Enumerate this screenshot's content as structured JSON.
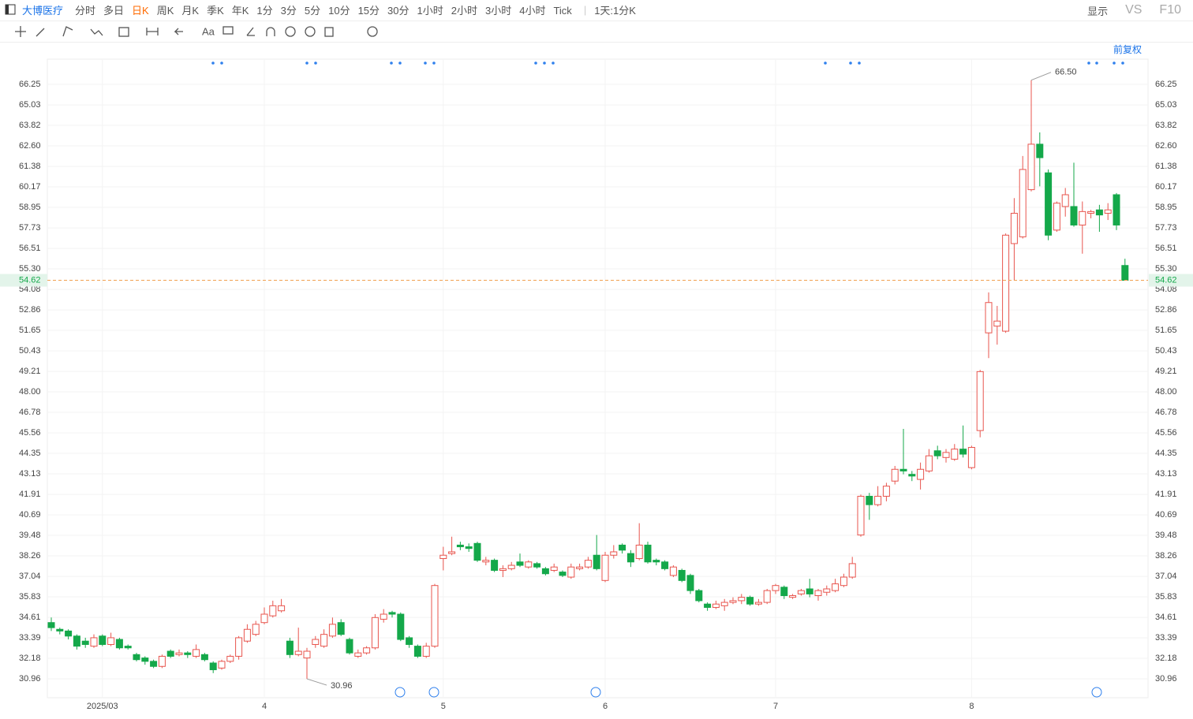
{
  "toolbar": {
    "stock": "大博医疗",
    "periods": [
      "分时",
      "多日",
      "日K",
      "周K",
      "月K",
      "季K",
      "年K",
      "1分",
      "3分",
      "5分",
      "10分",
      "15分",
      "30分",
      "1小时",
      "2小时",
      "3小时",
      "4小时",
      "Tick"
    ],
    "range": "1天:1分K",
    "display": "显示",
    "compare": "VS",
    "f10": "F10"
  },
  "adjust": "前复权",
  "chart_data": {
    "type": "candlestick",
    "categories": [
      null,
      null,
      null,
      null,
      null,
      null,
      "2025/03",
      null,
      null,
      null,
      null,
      null,
      null,
      null,
      null,
      null,
      null,
      null,
      null,
      null,
      null,
      null,
      null,
      null,
      null,
      "4",
      null,
      null,
      null,
      null,
      null,
      null,
      null,
      null,
      null,
      null,
      null,
      null,
      null,
      null,
      null,
      null,
      null,
      null,
      null,
      null,
      "5",
      null,
      null,
      null,
      null,
      null,
      null,
      null,
      null,
      null,
      null,
      null,
      null,
      null,
      null,
      null,
      null,
      null,
      null,
      "6",
      null,
      null,
      null,
      null,
      null,
      null,
      null,
      null,
      null,
      null,
      null,
      null,
      null,
      null,
      null,
      null,
      null,
      null,
      null,
      "7",
      null,
      null,
      null,
      null,
      null,
      null,
      null,
      null,
      null,
      null,
      null,
      null,
      null,
      null,
      null,
      null,
      null,
      null,
      null,
      null,
      null,
      null,
      "8",
      null,
      null,
      null,
      null,
      null,
      null,
      null,
      null,
      null,
      null,
      null,
      null,
      null,
      null,
      null,
      null,
      null,
      null
    ],
    "open": [
      34.3,
      33.9,
      33.8,
      33.5,
      33.2,
      32.9,
      33.5,
      33.0,
      33.3,
      32.9,
      32.4,
      32.2,
      32.0,
      31.7,
      32.6,
      32.4,
      32.5,
      32.3,
      32.4,
      31.9,
      31.6,
      32.0,
      32.3,
      33.2,
      33.6,
      34.3,
      34.7,
      35.0,
      33.2,
      32.4,
      32.2,
      33.0,
      32.9,
      33.5,
      34.3,
      33.3,
      32.3,
      32.5,
      32.8,
      34.5,
      34.9,
      34.8,
      33.4,
      32.9,
      32.3,
      32.9,
      38.1,
      38.4,
      38.9,
      38.8,
      39.0,
      37.9,
      38.0,
      37.4,
      37.5,
      37.9,
      37.6,
      37.8,
      37.5,
      37.4,
      37.3,
      37.0,
      37.5,
      37.6,
      38.3,
      36.8,
      38.3,
      38.9,
      38.4,
      38.1,
      38.9,
      38.0,
      37.9,
      37.1,
      37.4,
      37.1,
      36.2,
      35.4,
      35.2,
      35.3,
      35.5,
      35.6,
      35.8,
      35.4,
      35.5,
      36.2,
      36.4,
      35.8,
      36.0,
      36.3,
      35.9,
      36.1,
      36.2,
      36.5,
      37.0,
      39.5,
      41.8,
      41.3,
      41.8,
      42.7,
      43.4,
      43.1,
      42.8,
      43.3,
      44.5,
      44.1,
      44.0,
      44.6,
      43.5,
      45.7,
      51.5,
      51.9,
      51.6,
      56.8,
      57.2,
      60.0,
      62.7,
      61.0,
      57.6,
      59.0,
      59.0,
      57.9,
      58.6,
      58.8,
      58.6,
      59.7,
      55.5
    ],
    "high": [
      34.6,
      34.0,
      33.9,
      33.6,
      33.4,
      33.6,
      33.6,
      33.7,
      33.4,
      33.0,
      32.5,
      32.3,
      32.1,
      32.4,
      32.7,
      32.7,
      32.6,
      33.0,
      32.5,
      32.0,
      32.1,
      32.4,
      33.5,
      34.2,
      34.4,
      35.2,
      35.6,
      35.7,
      33.4,
      34.0,
      32.8,
      33.5,
      33.9,
      34.6,
      34.5,
      33.4,
      32.7,
      32.9,
      34.8,
      35.1,
      35.0,
      34.9,
      33.5,
      33.0,
      33.1,
      36.6,
      38.8,
      39.4,
      39.1,
      39.0,
      39.1,
      38.2,
      38.1,
      37.7,
      37.9,
      38.4,
      38.0,
      37.9,
      37.6,
      37.8,
      37.4,
      37.8,
      37.8,
      38.2,
      39.5,
      38.5,
      38.9,
      39.0,
      38.6,
      40.2,
      39.1,
      38.1,
      38.0,
      37.7,
      37.5,
      37.2,
      36.3,
      35.5,
      35.6,
      35.7,
      35.8,
      36.0,
      35.9,
      35.7,
      36.3,
      36.6,
      36.5,
      36.0,
      36.3,
      36.9,
      36.3,
      36.5,
      36.9,
      37.2,
      38.2,
      41.9,
      42.0,
      42.4,
      42.6,
      43.6,
      45.8,
      43.3,
      43.8,
      44.6,
      44.8,
      44.6,
      44.9,
      46.0,
      44.8,
      49.3,
      53.9,
      53.1,
      57.4,
      59.5,
      62.0,
      66.5,
      63.4,
      61.2,
      59.3,
      60.1,
      61.6,
      59.3,
      58.8,
      59.1,
      59.2,
      59.8,
      55.9
    ],
    "low": [
      33.8,
      33.6,
      33.3,
      32.7,
      32.8,
      32.8,
      32.9,
      32.9,
      32.7,
      32.7,
      32.0,
      31.8,
      31.6,
      31.6,
      32.2,
      32.3,
      32.2,
      32.2,
      32.0,
      31.3,
      31.5,
      31.9,
      32.1,
      33.1,
      33.5,
      34.2,
      34.6,
      34.9,
      32.2,
      32.3,
      30.96,
      32.8,
      32.8,
      33.4,
      33.5,
      32.4,
      32.2,
      32.4,
      32.7,
      34.3,
      34.6,
      33.2,
      32.8,
      32.2,
      32.2,
      32.8,
      37.4,
      38.3,
      38.6,
      38.5,
      37.9,
      37.7,
      37.3,
      37.0,
      37.4,
      37.6,
      37.5,
      37.5,
      37.1,
      37.3,
      37.0,
      36.9,
      37.4,
      37.5,
      37.4,
      36.7,
      38.1,
      38.4,
      37.6,
      38.0,
      37.8,
      37.7,
      37.4,
      37.0,
      36.7,
      36.0,
      35.5,
      35.0,
      35.1,
      35.0,
      35.4,
      35.4,
      35.3,
      35.3,
      35.4,
      36.0,
      35.7,
      35.7,
      35.9,
      35.8,
      35.6,
      35.9,
      36.1,
      36.4,
      36.9,
      39.4,
      40.4,
      41.2,
      41.5,
      42.5,
      43.1,
      42.7,
      42.2,
      43.2,
      44.0,
      43.8,
      43.9,
      44.1,
      43.4,
      45.3,
      50.0,
      50.8,
      51.5,
      54.6,
      57.1,
      59.9,
      60.2,
      57.0,
      57.5,
      58.4,
      57.8,
      56.2,
      58.3,
      57.5,
      58.2,
      57.6,
      54.6
    ],
    "close": [
      34.0,
      33.8,
      33.5,
      32.9,
      33.0,
      33.4,
      33.0,
      33.4,
      32.8,
      32.8,
      32.1,
      32.0,
      31.7,
      32.3,
      32.3,
      32.5,
      32.4,
      32.7,
      32.1,
      31.5,
      32.0,
      32.3,
      33.4,
      33.9,
      34.2,
      34.8,
      35.3,
      35.3,
      32.4,
      32.6,
      32.6,
      33.3,
      33.6,
      34.2,
      33.6,
      32.5,
      32.5,
      32.8,
      34.6,
      34.8,
      34.8,
      33.3,
      33.0,
      32.3,
      32.9,
      36.5,
      38.3,
      38.5,
      38.8,
      38.7,
      38.0,
      38.0,
      37.4,
      37.5,
      37.7,
      37.7,
      37.9,
      37.6,
      37.2,
      37.6,
      37.1,
      37.6,
      37.6,
      38.0,
      37.5,
      38.3,
      38.5,
      38.6,
      37.9,
      38.9,
      37.9,
      37.9,
      37.5,
      37.6,
      36.8,
      36.2,
      35.6,
      35.2,
      35.4,
      35.5,
      35.6,
      35.8,
      35.4,
      35.5,
      36.2,
      36.5,
      35.9,
      35.9,
      36.2,
      36.0,
      36.2,
      36.3,
      36.6,
      37.0,
      37.8,
      41.8,
      41.3,
      41.8,
      42.4,
      43.4,
      43.3,
      43.0,
      43.4,
      44.2,
      44.2,
      44.4,
      44.6,
      44.3,
      44.7,
      49.2,
      53.3,
      52.2,
      57.3,
      58.6,
      61.2,
      62.7,
      61.9,
      57.3,
      59.2,
      59.7,
      57.9,
      58.7,
      58.7,
      58.5,
      58.8,
      57.9,
      54.62
    ],
    "up_color": "#e8554e",
    "down_color": "#14a84a",
    "ylim": [
      29.84,
      67.75
    ],
    "yticks": [
      66.25,
      65.03,
      63.82,
      {
        "value": 62.6,
        "label": "62.60"
      },
      61.38,
      60.17,
      58.95,
      57.73,
      56.51,
      {
        "value": 55.3,
        "label": "55.30"
      },
      54.08,
      52.86,
      51.65,
      50.43,
      49.21,
      {
        "value": 48,
        "label": "48.00"
      },
      46.78,
      45.56,
      44.35,
      43.13,
      41.91,
      40.69,
      39.48,
      38.26,
      37.04,
      35.83,
      34.61,
      33.39,
      32.18,
      30.96
    ],
    "grid": true,
    "last_price": 54.62,
    "high_label": {
      "value": 66.5,
      "label": "66.50"
    },
    "low_label": 30.96
  }
}
